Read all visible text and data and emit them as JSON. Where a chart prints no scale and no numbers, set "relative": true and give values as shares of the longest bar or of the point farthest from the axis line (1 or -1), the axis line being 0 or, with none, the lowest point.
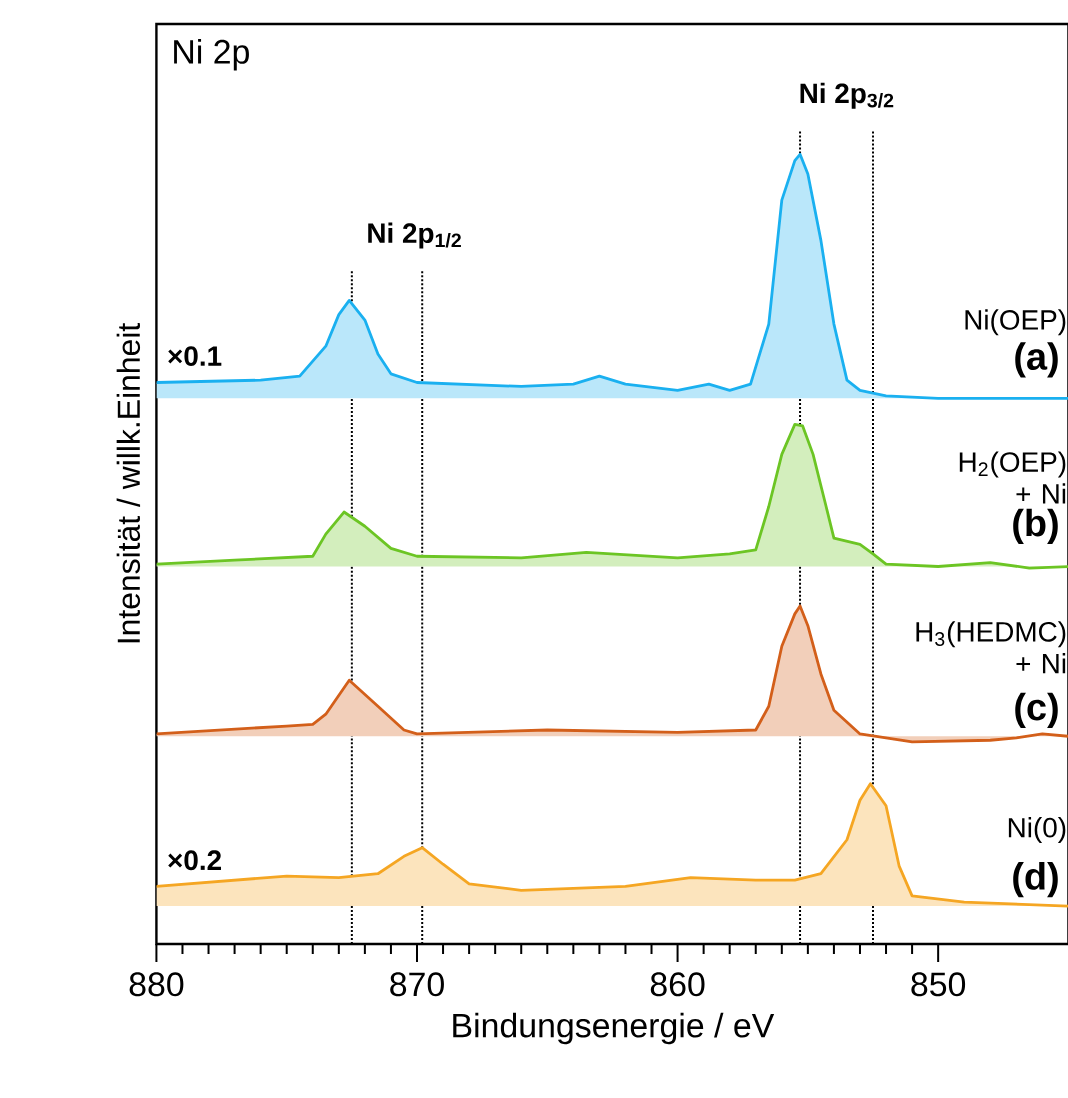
{
  "chart_data": {
    "type": "area",
    "title": "Ni 2p",
    "xlabel": "Bindungsenergie / eV",
    "ylabel": "Intensität / willk.Einheit",
    "relative": true,
    "xlim": [
      880,
      845
    ],
    "xticks": [
      880,
      870,
      860,
      850
    ],
    "marker": "none",
    "line_style": "solid",
    "series": [
      {
        "name": "Ni(OEP)",
        "color": "#1ab0f0",
        "x": [
          880,
          876,
          874.5,
          873.5,
          873,
          872.6,
          872,
          871.5,
          871,
          870,
          866,
          864,
          863,
          862,
          860,
          858.8,
          858,
          857.2,
          856.5,
          856,
          855.5,
          855.3,
          855,
          854.5,
          854,
          853.5,
          853,
          852,
          850,
          845
        ],
        "values": [
          0.711,
          0.714,
          0.719,
          0.757,
          0.797,
          0.815,
          0.79,
          0.747,
          0.722,
          0.711,
          0.706,
          0.709,
          0.719,
          0.709,
          0.701,
          0.709,
          0.701,
          0.709,
          0.785,
          0.942,
          0.992,
          1.0,
          0.975,
          0.891,
          0.785,
          0.714,
          0.701,
          0.694,
          0.691,
          0.691
        ]
      },
      {
        "name": "H$_{2}$(OEP) + Ni",
        "color": "#6cc524",
        "x": [
          880,
          877,
          874,
          873.5,
          872.8,
          872,
          871,
          870,
          866,
          863.5,
          860,
          858,
          857,
          856.5,
          856,
          855.5,
          855.2,
          854.8,
          854.3,
          854,
          853,
          852.5,
          852,
          850,
          848,
          846.5,
          845
        ],
        "values": [
          0.481,
          0.486,
          0.491,
          0.519,
          0.547,
          0.529,
          0.501,
          0.491,
          0.489,
          0.496,
          0.489,
          0.494,
          0.499,
          0.554,
          0.62,
          0.658,
          0.656,
          0.62,
          0.554,
          0.514,
          0.506,
          0.494,
          0.481,
          0.478,
          0.483,
          0.476,
          0.478
        ]
      },
      {
        "name": "H$_{3}$(HEDMC) + Ni",
        "color": "#d35f1a",
        "x": [
          880,
          875,
          874,
          873.5,
          872.6,
          871.5,
          870.5,
          870,
          865,
          860,
          857,
          856.5,
          856,
          855.5,
          855.3,
          855,
          854.5,
          854,
          853,
          851,
          848,
          847,
          846,
          845
        ],
        "values": [
          0.266,
          0.276,
          0.278,
          0.291,
          0.334,
          0.301,
          0.271,
          0.266,
          0.271,
          0.268,
          0.271,
          0.301,
          0.377,
          0.418,
          0.428,
          0.403,
          0.342,
          0.296,
          0.266,
          0.256,
          0.258,
          0.261,
          0.266,
          0.263
        ]
      },
      {
        "name": "Ni(0)",
        "color": "#f5a623",
        "x": [
          880,
          875,
          873,
          871.5,
          870.5,
          869.8,
          869,
          868,
          866,
          862,
          859.5,
          857,
          855.5,
          854.5,
          853.5,
          853,
          852.6,
          852,
          851.5,
          851,
          849,
          845
        ],
        "values": [
          0.073,
          0.086,
          0.084,
          0.089,
          0.111,
          0.122,
          0.101,
          0.076,
          0.068,
          0.073,
          0.084,
          0.081,
          0.081,
          0.089,
          0.132,
          0.182,
          0.203,
          0.175,
          0.099,
          0.061,
          0.053,
          0.048
        ]
      }
    ],
    "ref_lines": [
      {
        "axis": "x",
        "value": 872.5,
        "color": "#000000",
        "line_style": "dotted"
      },
      {
        "axis": "x",
        "value": 869.8,
        "color": "#000000",
        "line_style": "dotted"
      },
      {
        "axis": "x",
        "value": 855.3,
        "color": "#000000",
        "line_style": "dotted"
      },
      {
        "axis": "x",
        "value": 852.5,
        "color": "#000000",
        "line_style": "dotted"
      }
    ],
    "annotations": [
      "Ni 2p$_{1/2}$",
      "Ni 2p$_{3/2}$",
      "×0.1",
      "×0.2",
      "(a)",
      "(b)",
      "(c)",
      "(d)"
    ]
  }
}
